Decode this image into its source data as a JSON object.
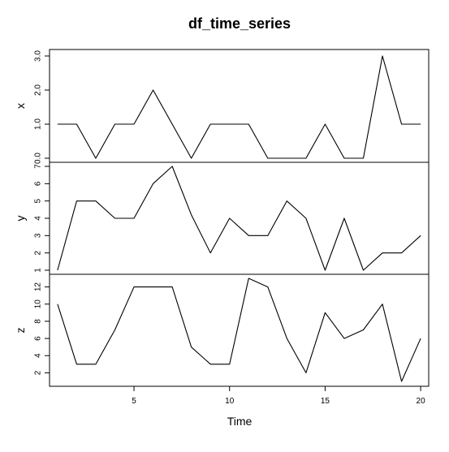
{
  "chart_data": {
    "type": "line",
    "title": "df_time_series",
    "xlabel": "Time",
    "xlim": [
      0.58,
      20.42
    ],
    "x": [
      1,
      2,
      3,
      4,
      5,
      6,
      7,
      8,
      9,
      10,
      11,
      12,
      13,
      14,
      15,
      16,
      17,
      18,
      19,
      20
    ],
    "x_ticks": [
      5,
      10,
      15,
      20
    ],
    "x_tick_labels": [
      "5",
      "10",
      "15",
      "20"
    ],
    "grid": false,
    "legend": "none",
    "line_color": "#000000",
    "panels": [
      {
        "name": "x",
        "ylabel": "x",
        "ylim": [
          0.0,
          3.0
        ],
        "y_ticks": [
          0.0,
          1.0,
          2.0,
          3.0
        ],
        "y_tick_labels": [
          "0.0",
          "1.0",
          "2.0",
          "3.0"
        ],
        "values": [
          1,
          1,
          0,
          1,
          1,
          2,
          1,
          0,
          1,
          1,
          1,
          0,
          0,
          0,
          1,
          0,
          0,
          3,
          1,
          1
        ]
      },
      {
        "name": "y",
        "ylabel": "y",
        "ylim": [
          1,
          7
        ],
        "y_ticks": [
          1,
          2,
          3,
          4,
          5,
          6,
          7
        ],
        "y_tick_labels": [
          "1",
          "2",
          "3",
          "4",
          "5",
          "6",
          "7"
        ],
        "values": [
          1,
          5,
          5,
          4,
          4,
          6,
          7,
          4.2,
          2,
          4,
          3,
          3,
          5,
          4,
          1,
          4,
          1,
          2,
          2,
          3
        ]
      },
      {
        "name": "z",
        "ylabel": "z",
        "ylim": [
          1,
          13
        ],
        "y_ticks": [
          2,
          4,
          6,
          8,
          10,
          12
        ],
        "y_tick_labels": [
          "2",
          "4",
          "6",
          "8",
          "10",
          "12"
        ],
        "values": [
          10,
          3,
          3,
          7,
          12,
          12,
          12,
          5,
          3,
          3,
          13,
          12,
          6,
          2,
          9,
          6,
          7,
          10,
          1,
          6
        ]
      }
    ]
  }
}
